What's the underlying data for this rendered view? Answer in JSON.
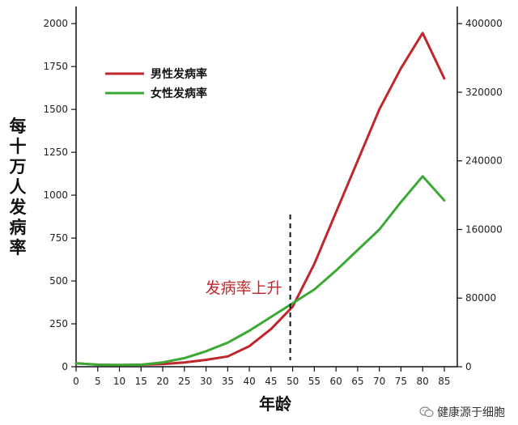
{
  "chart_data": {
    "type": "line",
    "xlabel": "年龄",
    "ylabel": "每十万人发病率",
    "x": [
      0,
      5,
      10,
      15,
      20,
      25,
      30,
      35,
      40,
      45,
      50,
      55,
      60,
      65,
      70,
      75,
      80,
      85
    ],
    "xticks": [
      0,
      5,
      10,
      15,
      20,
      25,
      30,
      35,
      40,
      45,
      50,
      55,
      60,
      65,
      70,
      75,
      80,
      85
    ],
    "xlim": [
      0,
      88
    ],
    "ylim": [
      0,
      2100
    ],
    "yticks": [
      0,
      250,
      500,
      750,
      1000,
      1250,
      1500,
      1750,
      2000
    ],
    "y2lim": [
      0,
      420000
    ],
    "y2ticks": [
      0,
      80000,
      160000,
      240000,
      320000,
      400000
    ],
    "series": [
      {
        "name": "男性发病率",
        "color": "#c0272d",
        "values": [
          20,
          12,
          10,
          12,
          15,
          25,
          40,
          60,
          120,
          220,
          350,
          600,
          900,
          1200,
          1500,
          1740,
          1945,
          1680
        ]
      },
      {
        "name": "女性发病率",
        "color": "#3aaa35",
        "values": [
          20,
          12,
          10,
          12,
          25,
          50,
          90,
          140,
          210,
          290,
          370,
          450,
          560,
          680,
          800,
          960,
          1110,
          970
        ]
      }
    ],
    "annotations": [
      {
        "text": "发病率上升",
        "x": 50
      }
    ],
    "grid": false,
    "legend_position": "top-left"
  },
  "watermark": {
    "text": "健康源于细胞",
    "icon": "wechat-icon"
  }
}
